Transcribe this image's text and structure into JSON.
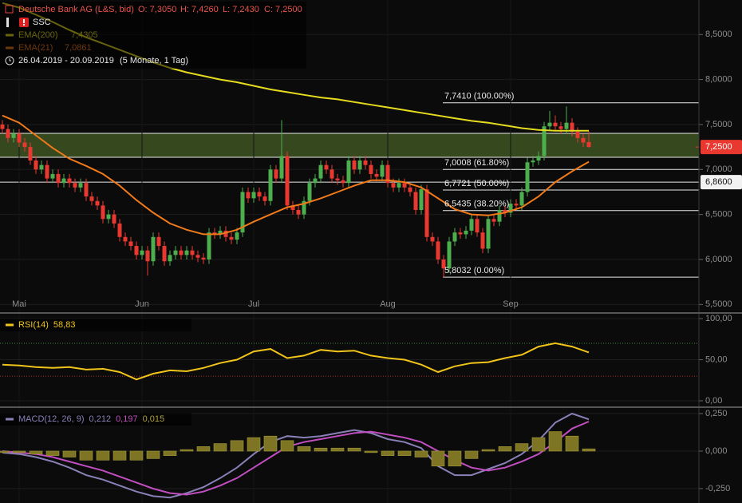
{
  "chart_data": [
    {
      "type": "candlestick",
      "title": "Deutsche Bank AG (L&S, bid)",
      "ohlc_labels": [
        "O: 7,3050",
        "H: 7,4260",
        "L: 7,2430",
        "C: 7,2500"
      ],
      "badge": "SSC",
      "period": "26.04.2019 - 20.09.2019",
      "span": "(5 Monate, 1 Tag)",
      "up_color": "#4cae4c",
      "down_color": "#e8382f",
      "grid": true,
      "ylim": [
        5.423,
        8.884
      ],
      "yticks": [
        {
          "value": 5.5,
          "label": "5,5000"
        },
        {
          "value": 6,
          "label": "6,0000"
        },
        {
          "value": 6.5,
          "label": "6,5000"
        },
        {
          "value": 7,
          "label": "7,0000"
        },
        {
          "value": 7.5,
          "label": "7,5000"
        },
        {
          "value": 8,
          "label": "8,0000"
        },
        {
          "value": 8.5,
          "label": "8,5000"
        }
      ],
      "categories": [
        null,
        null,
        null,
        "Mai",
        null,
        null,
        null,
        null,
        null,
        null,
        null,
        null,
        null,
        null,
        null,
        null,
        null,
        null,
        null,
        null,
        null,
        null,
        null,
        null,
        null,
        "Jun",
        null,
        null,
        null,
        null,
        null,
        null,
        null,
        null,
        null,
        null,
        null,
        null,
        null,
        null,
        null,
        null,
        null,
        null,
        null,
        "Jul",
        null,
        null,
        null,
        null,
        null,
        null,
        null,
        null,
        null,
        null,
        null,
        null,
        null,
        null,
        null,
        null,
        null,
        null,
        null,
        null,
        null,
        null,
        null,
        "Aug",
        null,
        null,
        null,
        null,
        null,
        null,
        null,
        null,
        null,
        null,
        null,
        null,
        null,
        null,
        null,
        null,
        null,
        null,
        null,
        null,
        null,
        "Sep",
        null,
        null,
        null,
        null,
        null,
        null,
        null,
        null,
        null,
        null,
        null,
        null,
        null,
        null
      ],
      "open": [
        7.5,
        7.45,
        7.35,
        7.4,
        7.3,
        7.25,
        7.1,
        7.0,
        7.05,
        6.9,
        6.95,
        6.85,
        6.9,
        6.85,
        6.8,
        6.85,
        6.7,
        6.65,
        6.6,
        6.45,
        6.5,
        6.4,
        6.25,
        6.2,
        6.15,
        6.05,
        6.1,
        5.98,
        6.25,
        6.15,
        5.98,
        6.05,
        6.1,
        6.05,
        6.1,
        6.05,
        6.02,
        6.0,
        6.3,
        6.28,
        6.32,
        6.25,
        6.22,
        6.3,
        6.75,
        6.68,
        6.75,
        6.7,
        6.65,
        7.0,
        6.9,
        7.15,
        6.6,
        6.55,
        6.5,
        6.65,
        6.85,
        6.9,
        7.05,
        7.0,
        6.9,
        6.88,
        6.85,
        7.1,
        7.0,
        7.1,
        7.05,
        6.95,
        6.92,
        7.05,
        6.85,
        6.8,
        6.85,
        6.8,
        6.75,
        6.55,
        6.78,
        6.25,
        6.2,
        6.0,
        5.9,
        6.2,
        6.3,
        6.28,
        6.32,
        6.45,
        6.3,
        6.12,
        6.45,
        6.42,
        6.55,
        6.52,
        6.62,
        6.6,
        6.75,
        7.08,
        7.1,
        7.15,
        7.48,
        7.52,
        7.48,
        7.45,
        7.52,
        7.42,
        7.35,
        7.305
      ],
      "high": [
        7.55,
        7.5,
        7.45,
        7.45,
        7.35,
        7.3,
        7.15,
        7.1,
        7.1,
        7.0,
        7.0,
        6.95,
        6.95,
        6.9,
        6.9,
        6.9,
        6.75,
        6.7,
        6.65,
        6.55,
        6.55,
        6.45,
        6.3,
        6.25,
        6.2,
        6.15,
        6.15,
        6.3,
        6.3,
        6.2,
        6.1,
        6.15,
        6.15,
        6.15,
        6.15,
        6.1,
        6.07,
        6.35,
        6.35,
        6.37,
        6.37,
        6.3,
        6.35,
        6.8,
        6.8,
        6.8,
        6.8,
        6.75,
        7.05,
        7.05,
        7.55,
        7.2,
        6.65,
        6.6,
        6.7,
        6.9,
        6.95,
        7.1,
        7.1,
        7.05,
        6.95,
        6.93,
        7.15,
        7.15,
        7.15,
        7.15,
        7.1,
        7.0,
        7.1,
        7.1,
        6.9,
        6.9,
        6.9,
        6.85,
        6.8,
        6.83,
        6.83,
        6.3,
        6.25,
        6.05,
        6.25,
        6.35,
        6.35,
        6.37,
        6.5,
        6.5,
        6.35,
        6.5,
        6.5,
        6.6,
        6.6,
        6.67,
        6.67,
        6.8,
        7.13,
        7.15,
        7.2,
        7.53,
        7.65,
        7.6,
        7.53,
        7.7,
        7.57,
        7.47,
        7.4,
        7.426
      ],
      "low": [
        7.4,
        7.3,
        7.3,
        7.25,
        7.2,
        7.05,
        6.95,
        6.95,
        6.85,
        6.85,
        6.8,
        6.8,
        6.8,
        6.75,
        6.75,
        6.65,
        6.6,
        6.55,
        6.4,
        6.4,
        6.35,
        6.2,
        6.15,
        6.1,
        6.0,
        6.0,
        5.82,
        5.93,
        6.1,
        5.93,
        5.93,
        6.0,
        6.0,
        6.0,
        6.0,
        5.97,
        5.95,
        5.95,
        6.23,
        6.23,
        6.2,
        6.17,
        6.17,
        6.25,
        6.63,
        6.63,
        6.65,
        6.6,
        6.6,
        6.85,
        6.85,
        6.55,
        6.5,
        6.45,
        6.45,
        6.6,
        6.8,
        6.85,
        6.95,
        6.85,
        6.83,
        6.8,
        6.8,
        6.95,
        6.95,
        7.0,
        6.9,
        6.87,
        6.87,
        6.8,
        6.75,
        6.75,
        6.75,
        6.7,
        6.5,
        6.5,
        6.2,
        6.15,
        5.95,
        5.8,
        5.85,
        6.15,
        6.23,
        6.23,
        6.27,
        6.25,
        6.07,
        6.07,
        6.37,
        6.37,
        6.47,
        6.47,
        6.55,
        6.55,
        6.7,
        7.03,
        7.05,
        7.1,
        7.43,
        7.43,
        7.4,
        7.4,
        7.37,
        7.3,
        7.25,
        7.243
      ],
      "close": [
        7.45,
        7.35,
        7.4,
        7.3,
        7.25,
        7.1,
        7.0,
        7.05,
        6.9,
        6.95,
        6.85,
        6.9,
        6.85,
        6.8,
        6.85,
        6.7,
        6.65,
        6.6,
        6.45,
        6.5,
        6.4,
        6.25,
        6.2,
        6.15,
        6.05,
        6.1,
        5.98,
        6.25,
        6.15,
        5.98,
        6.05,
        6.1,
        6.05,
        6.1,
        6.05,
        6.02,
        6.0,
        6.3,
        6.28,
        6.32,
        6.25,
        6.22,
        6.3,
        6.75,
        6.68,
        6.75,
        6.7,
        6.65,
        7.0,
        6.9,
        7.15,
        6.6,
        6.55,
        6.5,
        6.65,
        6.85,
        6.9,
        7.05,
        7.0,
        6.9,
        6.88,
        6.85,
        7.1,
        7.0,
        7.1,
        7.05,
        6.95,
        6.92,
        7.05,
        6.85,
        6.8,
        6.85,
        6.8,
        6.75,
        6.55,
        6.78,
        6.25,
        6.2,
        6.0,
        5.9,
        6.2,
        6.3,
        6.28,
        6.32,
        6.45,
        6.3,
        6.12,
        6.45,
        6.42,
        6.55,
        6.52,
        6.62,
        6.6,
        6.75,
        7.08,
        7.1,
        7.15,
        7.48,
        7.52,
        7.48,
        7.45,
        7.52,
        7.42,
        7.35,
        7.3,
        7.25
      ],
      "overlays": [
        {
          "name": "EMA(200)",
          "value_label": "7,4305",
          "color": "#e6dc1e",
          "x": [
            0,
            3,
            6,
            9,
            12,
            15,
            18,
            21,
            24,
            27,
            30,
            33,
            36,
            39,
            42,
            45,
            48,
            51,
            54,
            57,
            60,
            63,
            66,
            69,
            72,
            75,
            78,
            81,
            84,
            87,
            90,
            93,
            96,
            99,
            102,
            105
          ],
          "values": [
            8.85,
            8.8,
            8.72,
            8.64,
            8.55,
            8.47,
            8.4,
            8.33,
            8.26,
            8.19,
            8.13,
            8.08,
            8.04,
            8.0,
            7.97,
            7.93,
            7.89,
            7.86,
            7.83,
            7.8,
            7.78,
            7.75,
            7.72,
            7.69,
            7.66,
            7.63,
            7.6,
            7.57,
            7.54,
            7.52,
            7.49,
            7.46,
            7.44,
            7.43,
            7.43,
            7.4305
          ]
        },
        {
          "name": "EMA(21)",
          "value_label": "7,0861",
          "color": "#f07a1a",
          "x": [
            0,
            3,
            6,
            9,
            12,
            15,
            18,
            21,
            24,
            27,
            30,
            33,
            36,
            39,
            42,
            45,
            48,
            51,
            54,
            57,
            60,
            63,
            66,
            69,
            72,
            75,
            78,
            81,
            84,
            87,
            90,
            93,
            96,
            99,
            102,
            105
          ],
          "values": [
            7.6,
            7.52,
            7.38,
            7.24,
            7.12,
            7.04,
            6.95,
            6.82,
            6.66,
            6.52,
            6.4,
            6.33,
            6.28,
            6.28,
            6.33,
            6.42,
            6.5,
            6.58,
            6.62,
            6.68,
            6.75,
            6.82,
            6.88,
            6.88,
            6.86,
            6.8,
            6.68,
            6.56,
            6.5,
            6.49,
            6.52,
            6.58,
            6.7,
            6.86,
            6.98,
            7.0861
          ]
        }
      ],
      "zone": [
        7.136,
        7.402
      ],
      "zone_color": "#3b4f20",
      "fib_levels": [
        {
          "value": 7.741,
          "label": "7,7410 (100.00%)"
        },
        {
          "value": 7.0008,
          "label": "7,0008 (61.80%)"
        },
        {
          "value": 6.7721,
          "label": "6,7721 (50.00%)"
        },
        {
          "value": 6.5435,
          "label": "6,5435 (38.20%)"
        },
        {
          "value": 5.8032,
          "label": "5,8032 (0.00%)"
        }
      ],
      "hline": {
        "value": 6.86,
        "label": "6,8600"
      },
      "last_price": {
        "value": 7.25,
        "label": "7,2500",
        "color": "#e8382f"
      }
    },
    {
      "type": "line",
      "title": "RSI(14)",
      "grid": true,
      "ylim": [
        -5.8,
        104.9
      ],
      "yticks": [
        {
          "value": 0,
          "label": "0,00"
        },
        {
          "value": 50,
          "label": "50,00"
        },
        {
          "value": 100,
          "label": "100,00"
        }
      ],
      "levels": [
        {
          "value": 70,
          "color": "#3f8f3f"
        },
        {
          "value": 30,
          "color": "#a83434"
        }
      ],
      "series": [
        {
          "value_label": "58,83",
          "color": "#f0c419",
          "x": [
            0,
            3,
            6,
            9,
            12,
            15,
            18,
            21,
            24,
            27,
            30,
            33,
            36,
            39,
            42,
            45,
            48,
            51,
            54,
            57,
            60,
            63,
            66,
            69,
            72,
            75,
            78,
            81,
            84,
            87,
            90,
            93,
            96,
            99,
            102,
            105
          ],
          "values": [
            44,
            43,
            41,
            40,
            41,
            38,
            39,
            35,
            26,
            33,
            37,
            36,
            40,
            46,
            50,
            60,
            63,
            52,
            55,
            62,
            60,
            61,
            55,
            52,
            50,
            44,
            35,
            42,
            46,
            47,
            52,
            56,
            66,
            70,
            66,
            58.83
          ]
        }
      ]
    },
    {
      "type": "line",
      "title": "MACD(12, 26, 9)",
      "grid": true,
      "ylim": [
        -0.346,
        0.282
      ],
      "yticks": [
        {
          "value": -0.25,
          "label": "-0,250"
        },
        {
          "value": 0,
          "label": "0,000"
        },
        {
          "value": 0.25,
          "label": "0,250"
        }
      ],
      "series": [
        {
          "type": "bar",
          "value_label": "0,015",
          "color": "#7d7424",
          "x": [
            0,
            3,
            6,
            9,
            12,
            15,
            18,
            21,
            24,
            27,
            30,
            33,
            36,
            39,
            42,
            45,
            48,
            51,
            54,
            57,
            60,
            63,
            66,
            69,
            72,
            75,
            78,
            81,
            84,
            87,
            90,
            93,
            96,
            99,
            102,
            105
          ],
          "values": [
            -0.01,
            -0.01,
            -0.02,
            -0.03,
            -0.04,
            -0.06,
            -0.06,
            -0.06,
            -0.06,
            -0.05,
            -0.03,
            0.01,
            0.03,
            0.05,
            0.07,
            0.09,
            0.1,
            0.07,
            0.03,
            0.02,
            0.02,
            0.02,
            -0.01,
            -0.03,
            -0.03,
            -0.04,
            -0.1,
            -0.1,
            -0.05,
            0.01,
            0.03,
            0.05,
            0.09,
            0.13,
            0.1,
            0.015
          ]
        },
        {
          "value_label": "0,212",
          "color": "#8a80b8",
          "x": [
            0,
            3,
            6,
            9,
            12,
            15,
            18,
            21,
            24,
            27,
            30,
            33,
            36,
            39,
            42,
            45,
            48,
            51,
            54,
            57,
            60,
            63,
            66,
            69,
            72,
            75,
            78,
            81,
            84,
            87,
            90,
            93,
            96,
            99,
            102,
            105
          ],
          "values": [
            -0.01,
            -0.02,
            -0.04,
            -0.07,
            -0.11,
            -0.16,
            -0.19,
            -0.23,
            -0.27,
            -0.3,
            -0.31,
            -0.28,
            -0.24,
            -0.18,
            -0.11,
            -0.02,
            0.06,
            0.1,
            0.09,
            0.1,
            0.12,
            0.14,
            0.12,
            0.08,
            0.06,
            0.02,
            -0.1,
            -0.16,
            -0.16,
            -0.12,
            -0.08,
            -0.02,
            0.07,
            0.19,
            0.25,
            0.212
          ]
        },
        {
          "value_label": "0,197",
          "color": "#c04ec0",
          "x": [
            0,
            3,
            6,
            9,
            12,
            15,
            18,
            21,
            24,
            27,
            30,
            33,
            36,
            39,
            42,
            45,
            48,
            51,
            54,
            57,
            60,
            63,
            66,
            69,
            72,
            75,
            78,
            81,
            84,
            87,
            90,
            93,
            96,
            99,
            102,
            105
          ],
          "values": [
            0,
            -0.01,
            -0.02,
            -0.04,
            -0.07,
            -0.1,
            -0.13,
            -0.17,
            -0.21,
            -0.25,
            -0.28,
            -0.29,
            -0.27,
            -0.23,
            -0.18,
            -0.11,
            -0.04,
            0.03,
            0.06,
            0.08,
            0.1,
            0.12,
            0.13,
            0.11,
            0.09,
            0.06,
            0,
            -0.06,
            -0.11,
            -0.13,
            -0.11,
            -0.07,
            -0.02,
            0.06,
            0.15,
            0.197
          ]
        }
      ]
    }
  ]
}
